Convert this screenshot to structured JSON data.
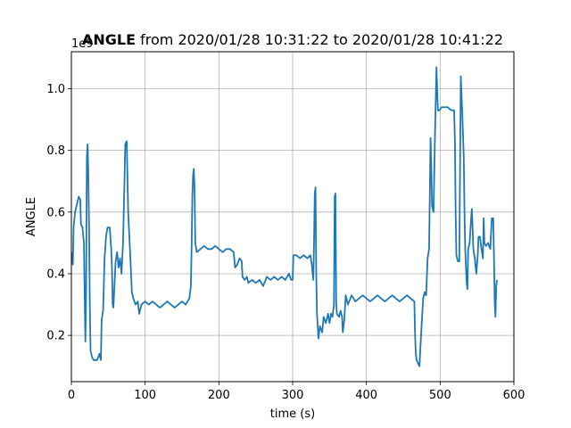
{
  "chart_data": {
    "type": "line",
    "title_bold": "ANGLE",
    "title_rest": " from 2020/01/28 10:31:22 to 2020/01/28 10:41:22",
    "xlabel": "time (s)",
    "ylabel": "ANGLE",
    "y_offset_label": "1e9",
    "xlim": [
      0,
      600
    ],
    "ylim": [
      0.05,
      1.12
    ],
    "x_ticks": [
      0,
      100,
      200,
      300,
      400,
      500,
      600
    ],
    "x_tick_labels": [
      "0",
      "100",
      "200",
      "300",
      "400",
      "500",
      "600"
    ],
    "y_ticks": [
      0.2,
      0.4,
      0.6,
      0.8,
      1.0
    ],
    "y_tick_labels": [
      "0.2",
      "0.4",
      "0.6",
      "0.8",
      "1.0"
    ],
    "grid": true,
    "line_color": "#1f77b4",
    "series": [
      {
        "points": [
          [
            0,
            0.47
          ],
          [
            2,
            0.43
          ],
          [
            3,
            0.55
          ],
          [
            5,
            0.6
          ],
          [
            8,
            0.63
          ],
          [
            10,
            0.65
          ],
          [
            12,
            0.64
          ],
          [
            13,
            0.56
          ],
          [
            15,
            0.55
          ],
          [
            17,
            0.5
          ],
          [
            18,
            0.33
          ],
          [
            19,
            0.18
          ],
          [
            20,
            0.35
          ],
          [
            21,
            0.78
          ],
          [
            22,
            0.82
          ],
          [
            23,
            0.72
          ],
          [
            24,
            0.55
          ],
          [
            25,
            0.3
          ],
          [
            26,
            0.15
          ],
          [
            28,
            0.13
          ],
          [
            30,
            0.12
          ],
          [
            35,
            0.12
          ],
          [
            38,
            0.14
          ],
          [
            40,
            0.12
          ],
          [
            41,
            0.25
          ],
          [
            43,
            0.28
          ],
          [
            45,
            0.45
          ],
          [
            47,
            0.52
          ],
          [
            49,
            0.55
          ],
          [
            52,
            0.55
          ],
          [
            54,
            0.48
          ],
          [
            55,
            0.42
          ],
          [
            56,
            0.3
          ],
          [
            57,
            0.29
          ],
          [
            60,
            0.44
          ],
          [
            62,
            0.47
          ],
          [
            64,
            0.42
          ],
          [
            66,
            0.45
          ],
          [
            68,
            0.4
          ],
          [
            70,
            0.5
          ],
          [
            72,
            0.7
          ],
          [
            73,
            0.82
          ],
          [
            75,
            0.83
          ],
          [
            76,
            0.72
          ],
          [
            77,
            0.6
          ],
          [
            79,
            0.5
          ],
          [
            80,
            0.45
          ],
          [
            82,
            0.34
          ],
          [
            84,
            0.32
          ],
          [
            87,
            0.3
          ],
          [
            90,
            0.31
          ],
          [
            92,
            0.27
          ],
          [
            95,
            0.3
          ],
          [
            100,
            0.31
          ],
          [
            105,
            0.3
          ],
          [
            110,
            0.31
          ],
          [
            115,
            0.3
          ],
          [
            120,
            0.29
          ],
          [
            125,
            0.3
          ],
          [
            130,
            0.31
          ],
          [
            135,
            0.3
          ],
          [
            140,
            0.29
          ],
          [
            145,
            0.3
          ],
          [
            150,
            0.31
          ],
          [
            155,
            0.3
          ],
          [
            160,
            0.32
          ],
          [
            162,
            0.36
          ],
          [
            163,
            0.48
          ],
          [
            164,
            0.65
          ],
          [
            165,
            0.72
          ],
          [
            166,
            0.74
          ],
          [
            167,
            0.68
          ],
          [
            168,
            0.5
          ],
          [
            170,
            0.47
          ],
          [
            175,
            0.48
          ],
          [
            180,
            0.49
          ],
          [
            185,
            0.48
          ],
          [
            190,
            0.48
          ],
          [
            195,
            0.49
          ],
          [
            200,
            0.48
          ],
          [
            205,
            0.47
          ],
          [
            210,
            0.48
          ],
          [
            215,
            0.48
          ],
          [
            220,
            0.47
          ],
          [
            222,
            0.42
          ],
          [
            225,
            0.43
          ],
          [
            228,
            0.45
          ],
          [
            231,
            0.44
          ],
          [
            232,
            0.39
          ],
          [
            235,
            0.38
          ],
          [
            238,
            0.39
          ],
          [
            240,
            0.37
          ],
          [
            245,
            0.38
          ],
          [
            250,
            0.37
          ],
          [
            255,
            0.38
          ],
          [
            260,
            0.36
          ],
          [
            265,
            0.39
          ],
          [
            270,
            0.38
          ],
          [
            275,
            0.39
          ],
          [
            280,
            0.38
          ],
          [
            285,
            0.39
          ],
          [
            290,
            0.38
          ],
          [
            295,
            0.4
          ],
          [
            298,
            0.38
          ],
          [
            300,
            0.38
          ],
          [
            301,
            0.46
          ],
          [
            305,
            0.46
          ],
          [
            310,
            0.45
          ],
          [
            315,
            0.46
          ],
          [
            320,
            0.45
          ],
          [
            324,
            0.46
          ],
          [
            326,
            0.43
          ],
          [
            328,
            0.38
          ],
          [
            329,
            0.5
          ],
          [
            330,
            0.66
          ],
          [
            331,
            0.68
          ],
          [
            332,
            0.4
          ],
          [
            333,
            0.27
          ],
          [
            335,
            0.19
          ],
          [
            337,
            0.23
          ],
          [
            340,
            0.21
          ],
          [
            342,
            0.26
          ],
          [
            345,
            0.24
          ],
          [
            348,
            0.27
          ],
          [
            350,
            0.24
          ],
          [
            352,
            0.27
          ],
          [
            354,
            0.26
          ],
          [
            356,
            0.3
          ],
          [
            357,
            0.65
          ],
          [
            358,
            0.66
          ],
          [
            359,
            0.31
          ],
          [
            360,
            0.27
          ],
          [
            363,
            0.26
          ],
          [
            365,
            0.28
          ],
          [
            367,
            0.26
          ],
          [
            368,
            0.21
          ],
          [
            370,
            0.25
          ],
          [
            372,
            0.33
          ],
          [
            375,
            0.3
          ],
          [
            380,
            0.33
          ],
          [
            385,
            0.31
          ],
          [
            390,
            0.32
          ],
          [
            395,
            0.33
          ],
          [
            400,
            0.32
          ],
          [
            405,
            0.31
          ],
          [
            410,
            0.32
          ],
          [
            415,
            0.33
          ],
          [
            420,
            0.32
          ],
          [
            425,
            0.31
          ],
          [
            430,
            0.32
          ],
          [
            435,
            0.33
          ],
          [
            440,
            0.32
          ],
          [
            445,
            0.31
          ],
          [
            450,
            0.32
          ],
          [
            455,
            0.33
          ],
          [
            460,
            0.32
          ],
          [
            465,
            0.31
          ],
          [
            466,
            0.2
          ],
          [
            467,
            0.14
          ],
          [
            468,
            0.12
          ],
          [
            470,
            0.11
          ],
          [
            472,
            0.1
          ],
          [
            473,
            0.15
          ],
          [
            475,
            0.24
          ],
          [
            477,
            0.32
          ],
          [
            479,
            0.34
          ],
          [
            481,
            0.33
          ],
          [
            483,
            0.45
          ],
          [
            485,
            0.48
          ],
          [
            487,
            0.84
          ],
          [
            488,
            0.75
          ],
          [
            489,
            0.62
          ],
          [
            491,
            0.6
          ],
          [
            493,
            0.85
          ],
          [
            495,
            1.07
          ],
          [
            496,
            0.99
          ],
          [
            497,
            0.93
          ],
          [
            499,
            0.93
          ],
          [
            502,
            0.94
          ],
          [
            505,
            0.94
          ],
          [
            510,
            0.94
          ],
          [
            515,
            0.93
          ],
          [
            519,
            0.93
          ],
          [
            520,
            0.83
          ],
          [
            521,
            0.6
          ],
          [
            522,
            0.46
          ],
          [
            524,
            0.44
          ],
          [
            526,
            0.44
          ],
          [
            527,
            0.75
          ],
          [
            528,
            1.04
          ],
          [
            530,
            0.92
          ],
          [
            531,
            0.85
          ],
          [
            532,
            0.78
          ],
          [
            533,
            0.6
          ],
          [
            534,
            0.48
          ],
          [
            535,
            0.42
          ],
          [
            536,
            0.37
          ],
          [
            537,
            0.35
          ],
          [
            538,
            0.48
          ],
          [
            540,
            0.5
          ],
          [
            542,
            0.58
          ],
          [
            543,
            0.61
          ],
          [
            544,
            0.55
          ],
          [
            545,
            0.48
          ],
          [
            547,
            0.45
          ],
          [
            549,
            0.4
          ],
          [
            551,
            0.46
          ],
          [
            552,
            0.52
          ],
          [
            554,
            0.52
          ],
          [
            556,
            0.48
          ],
          [
            558,
            0.45
          ],
          [
            559,
            0.58
          ],
          [
            560,
            0.5
          ],
          [
            562,
            0.49
          ],
          [
            565,
            0.5
          ],
          [
            568,
            0.48
          ],
          [
            570,
            0.58
          ],
          [
            572,
            0.58
          ],
          [
            573,
            0.45
          ],
          [
            574,
            0.3
          ],
          [
            575,
            0.26
          ],
          [
            576,
            0.36
          ],
          [
            577,
            0.38
          ]
        ]
      }
    ]
  }
}
